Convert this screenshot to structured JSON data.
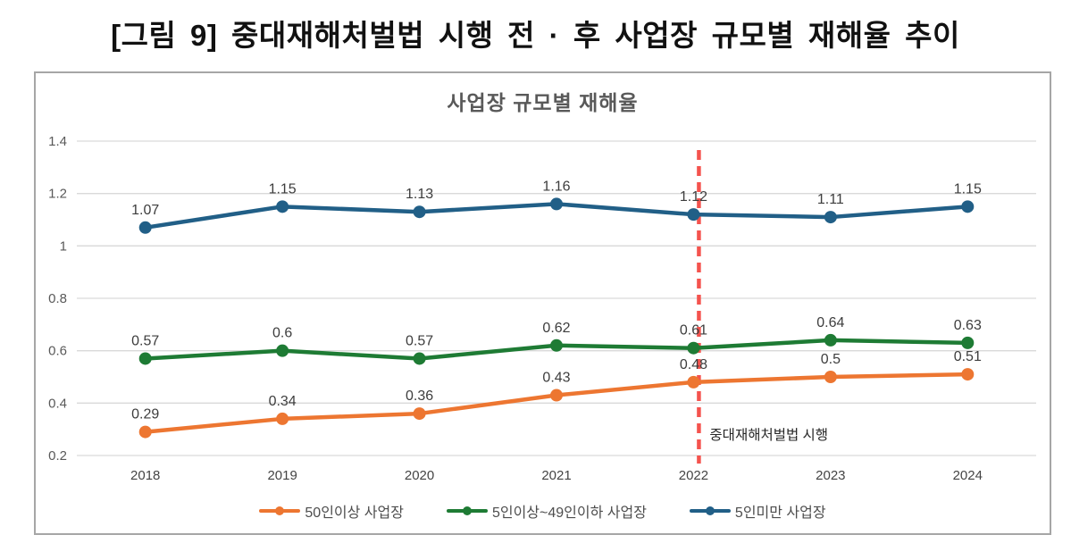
{
  "page_title": "[그림 9] 중대재해처벌법 시행 전 · 후 사업장 규모별 재해율 추이",
  "chart_data": {
    "type": "line",
    "title": "사업장 규모별 재해율",
    "xlabel": "",
    "ylabel": "",
    "categories": [
      "2018",
      "2019",
      "2020",
      "2021",
      "2022",
      "2023",
      "2024"
    ],
    "series": [
      {
        "name": "50인이상 사업장",
        "color": "#ED7631",
        "values": [
          0.29,
          0.34,
          0.36,
          0.43,
          0.48,
          0.5,
          0.51
        ]
      },
      {
        "name": "5인이상~49인이하 사업장",
        "color": "#1E7B34",
        "values": [
          0.57,
          0.6,
          0.57,
          0.62,
          0.61,
          0.64,
          0.63
        ]
      },
      {
        "name": "5인미만 사업장",
        "color": "#215F87",
        "values": [
          1.07,
          1.15,
          1.13,
          1.16,
          1.12,
          1.11,
          1.15
        ]
      }
    ],
    "ylim": [
      0.2,
      1.4
    ],
    "yticks": [
      0.2,
      0.4,
      0.6,
      0.8,
      1,
      1.2,
      1.4
    ],
    "grid": true,
    "legend_position": "bottom",
    "annotation": {
      "label": "중대재해처벌법 시행",
      "category": "2022",
      "index": 4
    },
    "colors": {
      "grid": "#d9d9d9",
      "border": "#a6a6a6",
      "annotation_line": "#F4534E",
      "tick_text": "#595959",
      "data_label_text": "#3d3d3d"
    }
  }
}
